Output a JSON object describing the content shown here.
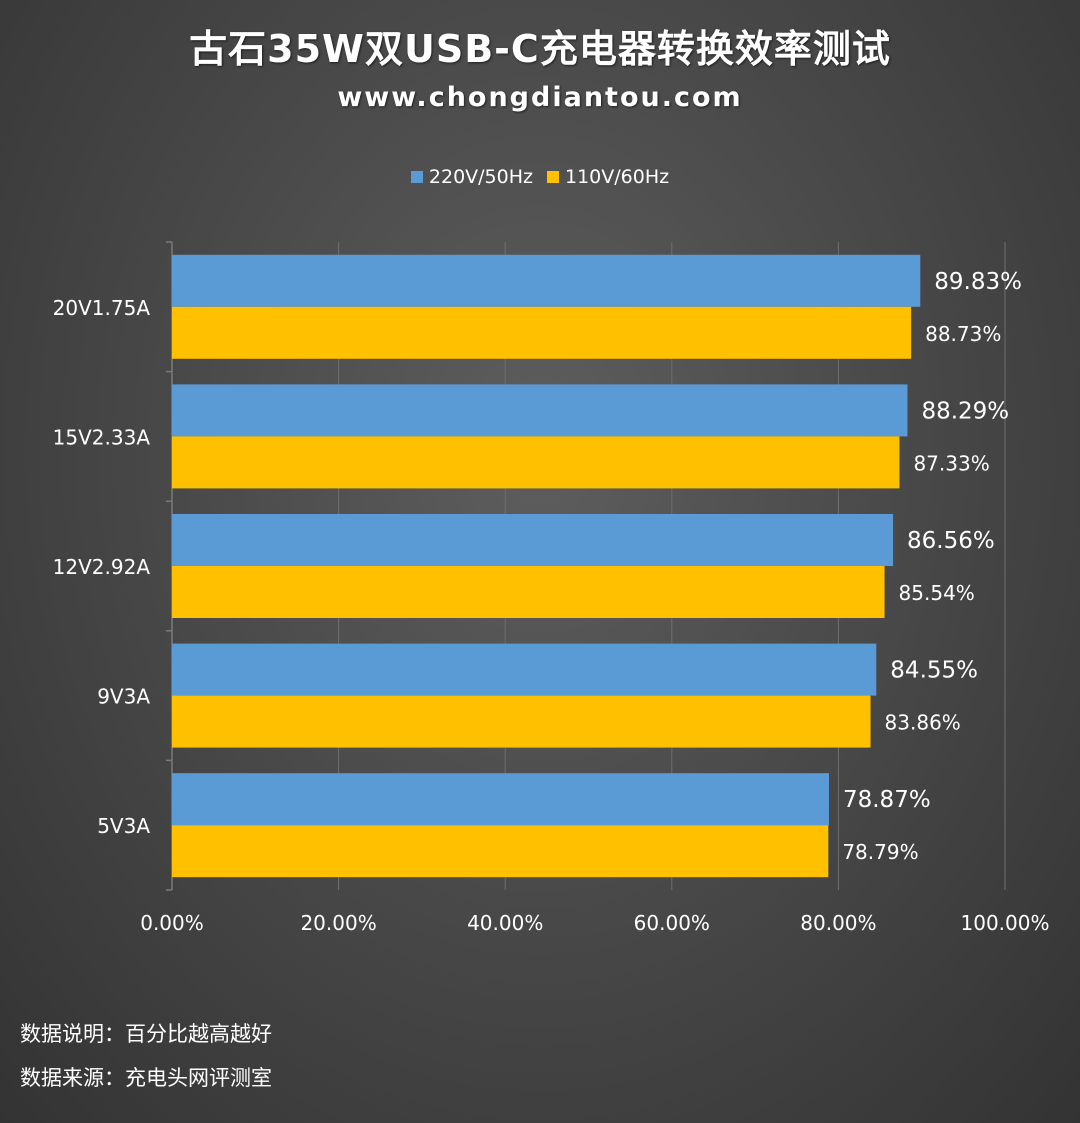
{
  "title": "古石35W双USB-C充电器转换效率测试",
  "subtitle": "www.chongdiantou.com",
  "legend": {
    "series_1": "220V/50Hz",
    "series_2": "110V/60Hz"
  },
  "footnotes": {
    "note_1": "数据说明：百分比越高越好",
    "note_2": "数据来源：充电头网评测室"
  },
  "colors": {
    "series_1": "#5b9bd5",
    "series_2": "#ffc000",
    "gridline": "#6e6e6e",
    "axis": "#7a7a7a"
  },
  "chart_data": {
    "type": "bar",
    "orientation": "horizontal",
    "title": "古石35W双USB-C充电器转换效率测试",
    "subtitle": "www.chongdiantou.com",
    "categories": [
      "20V1.75A",
      "15V2.33A",
      "12V2.92A",
      "9V3A",
      "5V3A"
    ],
    "series": [
      {
        "name": "220V/50Hz",
        "values": [
          89.83,
          88.29,
          86.56,
          84.55,
          78.87
        ],
        "labels": [
          "89.83%",
          "88.29%",
          "86.56%",
          "84.55%",
          "78.87%"
        ]
      },
      {
        "name": "110V/60Hz",
        "values": [
          88.73,
          87.33,
          85.54,
          83.86,
          78.79
        ],
        "labels": [
          "88.73%",
          "87.33%",
          "85.54%",
          "83.86%",
          "78.79%"
        ]
      }
    ],
    "xlim": [
      0,
      100
    ],
    "xticks": [
      0,
      20,
      40,
      60,
      80,
      100
    ],
    "xtick_labels": [
      "0.00%",
      "20.00%",
      "40.00%",
      "60.00%",
      "80.00%",
      "100.00%"
    ],
    "grid": true,
    "legend_position": "top"
  }
}
